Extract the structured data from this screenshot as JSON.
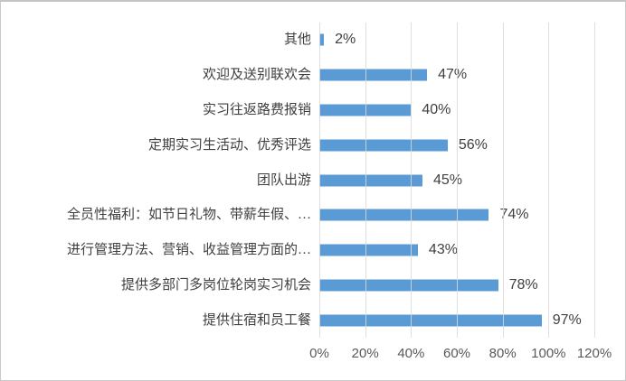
{
  "chart_data": {
    "type": "bar",
    "orientation": "horizontal",
    "title": "",
    "legend_position": "none",
    "grid": true,
    "categories": [
      "其他",
      "欢迎及送别联欢会",
      "实习往返路费报销",
      "定期实习生活动、优秀评选",
      "团队出游",
      "全员性福利：如节日礼物、带薪年假、…",
      "进行管理方法、营销、收益管理方面的…",
      "提供多部门多岗位轮岗实习机会",
      "提供住宿和员工餐"
    ],
    "values": [
      2,
      47,
      40,
      56,
      45,
      74,
      43,
      78,
      97
    ],
    "value_labels": [
      "2%",
      "47%",
      "40%",
      "56%",
      "45%",
      "74%",
      "43%",
      "78%",
      "97%"
    ],
    "x_axis": {
      "min": 0,
      "max": 120,
      "tick_labels": [
        "0%",
        "20%",
        "40%",
        "60%",
        "80%",
        "100%",
        "120%"
      ],
      "tick_values": [
        0,
        20,
        40,
        60,
        80,
        100,
        120
      ]
    },
    "colors": {
      "bar": "#5b9bd5",
      "gridline": "#d9d9d9",
      "category_text": "#3f3f3f",
      "value_text": "#404040",
      "axis_text": "#595959",
      "background": "#ffffff",
      "border": "#c9c9c9"
    }
  }
}
